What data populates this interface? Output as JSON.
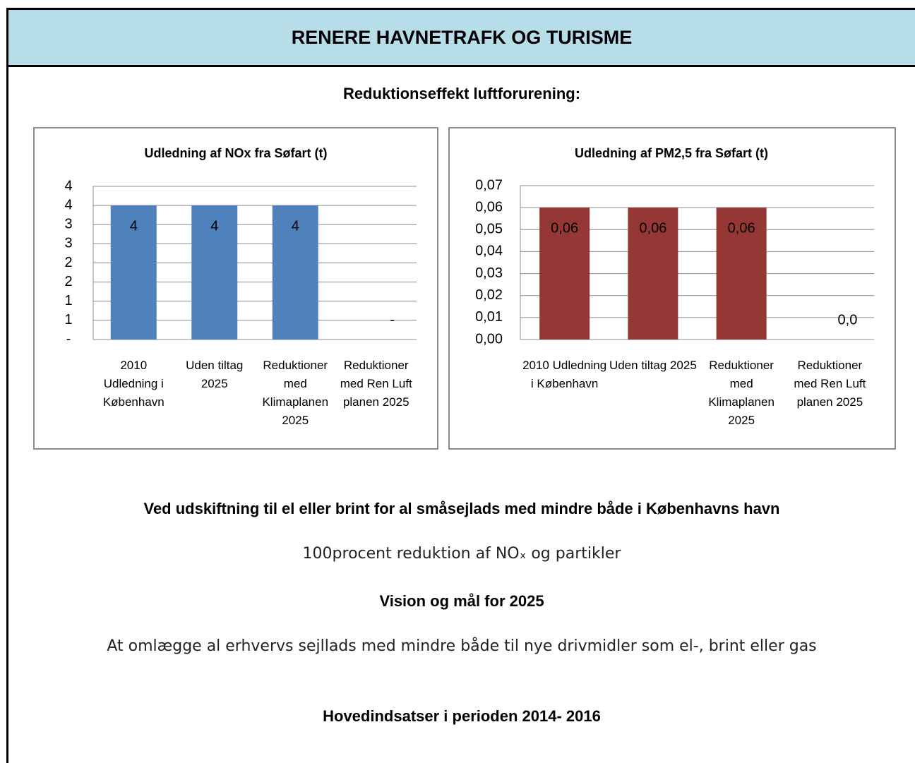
{
  "header": {
    "title": "RENERE HAVNETRAFK OG TURISME"
  },
  "subtitle": "Reduktionseffekt luftforurening:",
  "chart_data": [
    {
      "type": "bar",
      "title": "Udledning af NOx fra Søfart (t)",
      "categories": [
        "2010 Udledning i København",
        "Uden tiltag 2025",
        "Reduktioner med Klimaplanen 2025",
        "Reduktioner med Ren Luft planen 2025"
      ],
      "values": [
        3.5,
        3.5,
        3.5,
        0
      ],
      "value_labels": [
        "4",
        "4",
        "4",
        "-"
      ],
      "color": "#4f81bd",
      "ylim": [
        0,
        4
      ],
      "yticks": [
        {
          "value": 0,
          "label": "-"
        },
        {
          "value": 0.5,
          "label": "1"
        },
        1,
        {
          "value": 1.5,
          "label": "2"
        },
        2,
        {
          "value": 2.5,
          "label": "3"
        },
        3,
        {
          "value": 3.5,
          "label": "4"
        },
        4
      ],
      "grid": true
    },
    {
      "type": "bar",
      "title": "Udledning af PM2,5 fra Søfart (t)",
      "categories": [
        "2010 Udledning i København",
        "Uden tiltag 2025",
        "Reduktioner med Klimaplanen 2025",
        "Reduktioner med Ren Luft planen 2025"
      ],
      "values": [
        0.06,
        0.06,
        0.06,
        0
      ],
      "value_labels": [
        "0,06",
        "0,06",
        "0,06",
        "0,0"
      ],
      "color": "#953735",
      "ylim": [
        0,
        0.07
      ],
      "yticks": [
        {
          "value": 0,
          "label": "0,00"
        },
        {
          "value": 0.01,
          "label": "0,01"
        },
        {
          "value": 0.02,
          "label": "0,02"
        },
        {
          "value": 0.03,
          "label": "0,03"
        },
        {
          "value": 0.04,
          "label": "0,04"
        },
        {
          "value": 0.05,
          "label": "0,05"
        },
        {
          "value": 0.06,
          "label": "0,06"
        },
        {
          "value": 0.07,
          "label": "0,07"
        }
      ],
      "grid": true
    }
  ],
  "sections": [
    {
      "heading": "Ved udskiftning til el eller brint for al småsejlads med mindre både i Københavns havn",
      "text": "100procent reduktion af NOₓ og partikler"
    },
    {
      "heading": "Vision og mål for 2025",
      "text": "At omlægge al erhvervs sejllads med mindre både til nye drivmidler som el-, brint eller gas"
    },
    {
      "heading": "Hovedindsatser i perioden 2014- 2016"
    }
  ]
}
